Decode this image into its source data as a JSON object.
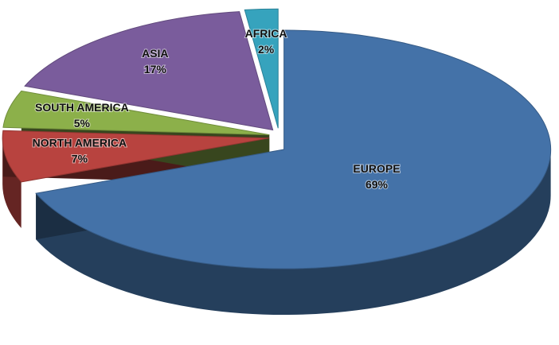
{
  "chart_data": {
    "type": "pie",
    "categories": [
      "EUROPE",
      "NORTH AMERICA",
      "SOUTH AMERICA",
      "ASIA",
      "AFRICA"
    ],
    "values": [
      69,
      7,
      5,
      17,
      2
    ],
    "value_labels": [
      "69%",
      "7%",
      "5%",
      "17%",
      "2%"
    ],
    "colors": [
      "#4472a8",
      "#b8433f",
      "#8cb04a",
      "#7a5c9c",
      "#36a3bd"
    ]
  }
}
